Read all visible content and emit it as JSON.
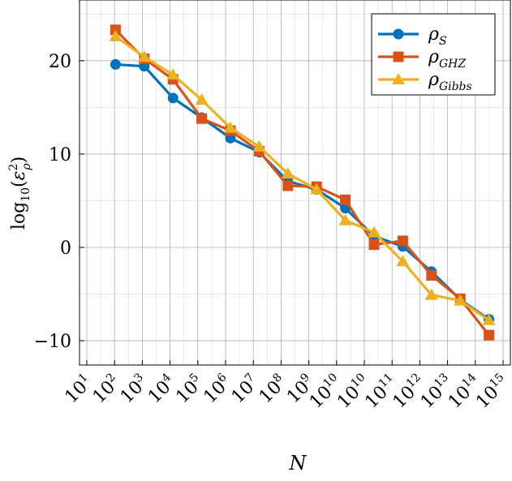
{
  "chart_data": {
    "type": "line",
    "xlabel": "N",
    "ylabel": "log10(ε²ρ)",
    "ylabel_parts": {
      "base": "log",
      "sub": "10",
      "open": "(",
      "eps": "ε",
      "sup": "2",
      "rho": "ρ",
      "close": ")"
    },
    "x_tick_labels": [
      {
        "base": "10",
        "exp": "1"
      },
      {
        "base": "10",
        "exp": "2"
      },
      {
        "base": "10",
        "exp": "3"
      },
      {
        "base": "10",
        "exp": "4"
      },
      {
        "base": "10",
        "exp": "5"
      },
      {
        "base": "10",
        "exp": "6"
      },
      {
        "base": "10",
        "exp": "7"
      },
      {
        "base": "10",
        "exp": "8"
      },
      {
        "base": "10",
        "exp": "9"
      },
      {
        "base": "10",
        "exp": "10"
      },
      {
        "base": "10",
        "exp": "10"
      },
      {
        "base": "10",
        "exp": "11"
      },
      {
        "base": "10",
        "exp": "12"
      },
      {
        "base": "10",
        "exp": "13"
      },
      {
        "base": "10",
        "exp": "14"
      },
      {
        "base": "10",
        "exp": "15"
      }
    ],
    "yticks": [
      -10,
      0,
      10,
      20
    ],
    "ylim": [
      -12.6,
      26.5
    ],
    "xlim": [
      0.0,
      15.0
    ],
    "grid": true,
    "legend_position": "top-right",
    "series": [
      {
        "name": "ρS",
        "label_main": "ρ",
        "label_sub": "S",
        "color": "#0072bd",
        "marker": "circle",
        "x": [
          1.0,
          2.0,
          3.0,
          4.0,
          5.0,
          6.0,
          7.0,
          8.0,
          9.0,
          10.0,
          11.0,
          12.0,
          13.0,
          14.0
        ],
        "y": [
          19.6,
          19.4,
          16.0,
          13.9,
          11.7,
          10.2,
          7.1,
          6.2,
          4.2,
          1.2,
          0.1,
          -2.6,
          -5.6,
          -7.7
        ]
      },
      {
        "name": "ρGHZ",
        "label_main": "ρ",
        "label_sub": "GHZ",
        "color": "#d95319",
        "marker": "square",
        "x": [
          1.0,
          2.0,
          3.0,
          4.0,
          5.0,
          6.0,
          7.0,
          8.0,
          9.0,
          10.0,
          10.0,
          11.0,
          12.0,
          13.0,
          14.0
        ],
        "y": [
          23.3,
          20.2,
          18.0,
          13.8,
          12.5,
          10.3,
          6.6,
          6.5,
          5.1,
          0.3,
          0.3,
          0.7,
          -3.0,
          -5.5,
          -9.4
        ]
      },
      {
        "name": "ρGibbs",
        "label_main": "ρ",
        "label_sub": "Gibbs",
        "color": "#edb120",
        "marker": "triangle",
        "x": [
          1.0,
          2.0,
          3.0,
          4.0,
          5.0,
          6.0,
          7.0,
          8.0,
          9.0,
          10.0,
          11.0,
          12.0,
          13.0,
          14.0
        ],
        "y": [
          22.6,
          20.4,
          18.5,
          15.8,
          12.8,
          10.8,
          7.9,
          6.2,
          2.9,
          1.6,
          -1.5,
          -5.1,
          -5.7,
          -7.8
        ]
      }
    ]
  }
}
